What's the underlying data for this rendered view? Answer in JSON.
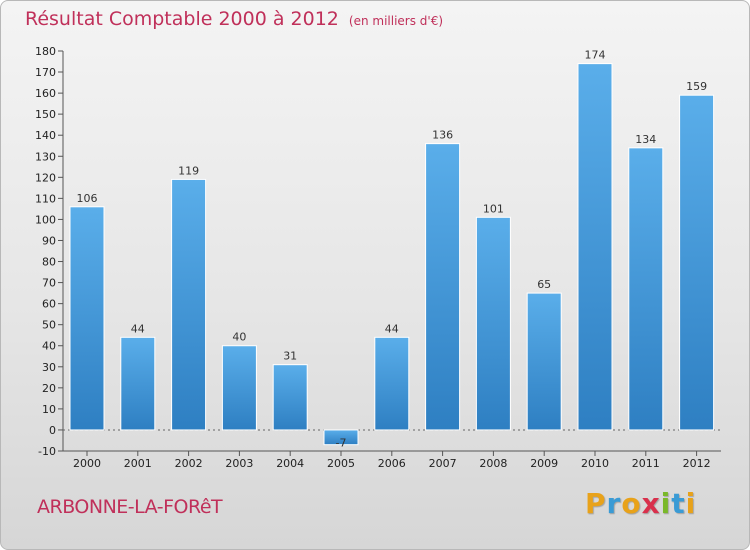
{
  "header": {
    "title": "Résultat Comptable 2000 à 2012",
    "subtitle": "(en milliers d'€)"
  },
  "footer": {
    "location": "ARBONNE-LA-FORêT",
    "brand_letters": [
      "P",
      "r",
      "o",
      "x",
      "i",
      "t",
      "i"
    ],
    "brand_colors": [
      "#e8a21a",
      "#3a9bd5",
      "#e8a21a",
      "#d9304c",
      "#7ab829",
      "#3a9bd5",
      "#e8a21a"
    ]
  },
  "colors": {
    "bar_top": "#5aaeea",
    "bar_bottom": "#2e7fc2",
    "axis": "#555555",
    "grid": "#666666"
  },
  "chart_data": {
    "type": "bar",
    "title": "Résultat Comptable 2000 à 2012",
    "subtitle": "(en milliers d'€)",
    "categories": [
      "2000",
      "2001",
      "2002",
      "2003",
      "2004",
      "2005",
      "2006",
      "2007",
      "2008",
      "2009",
      "2010",
      "2011",
      "2012"
    ],
    "values": [
      106,
      44,
      119,
      40,
      31,
      -7,
      44,
      136,
      101,
      65,
      174,
      134,
      159
    ],
    "ylim": [
      -10,
      180
    ],
    "yticks": [
      -10,
      0,
      10,
      20,
      30,
      40,
      50,
      60,
      70,
      80,
      90,
      100,
      110,
      120,
      130,
      140,
      150,
      160,
      170,
      180
    ],
    "xlabel": "",
    "ylabel": "",
    "grid": false,
    "legend": "none"
  }
}
